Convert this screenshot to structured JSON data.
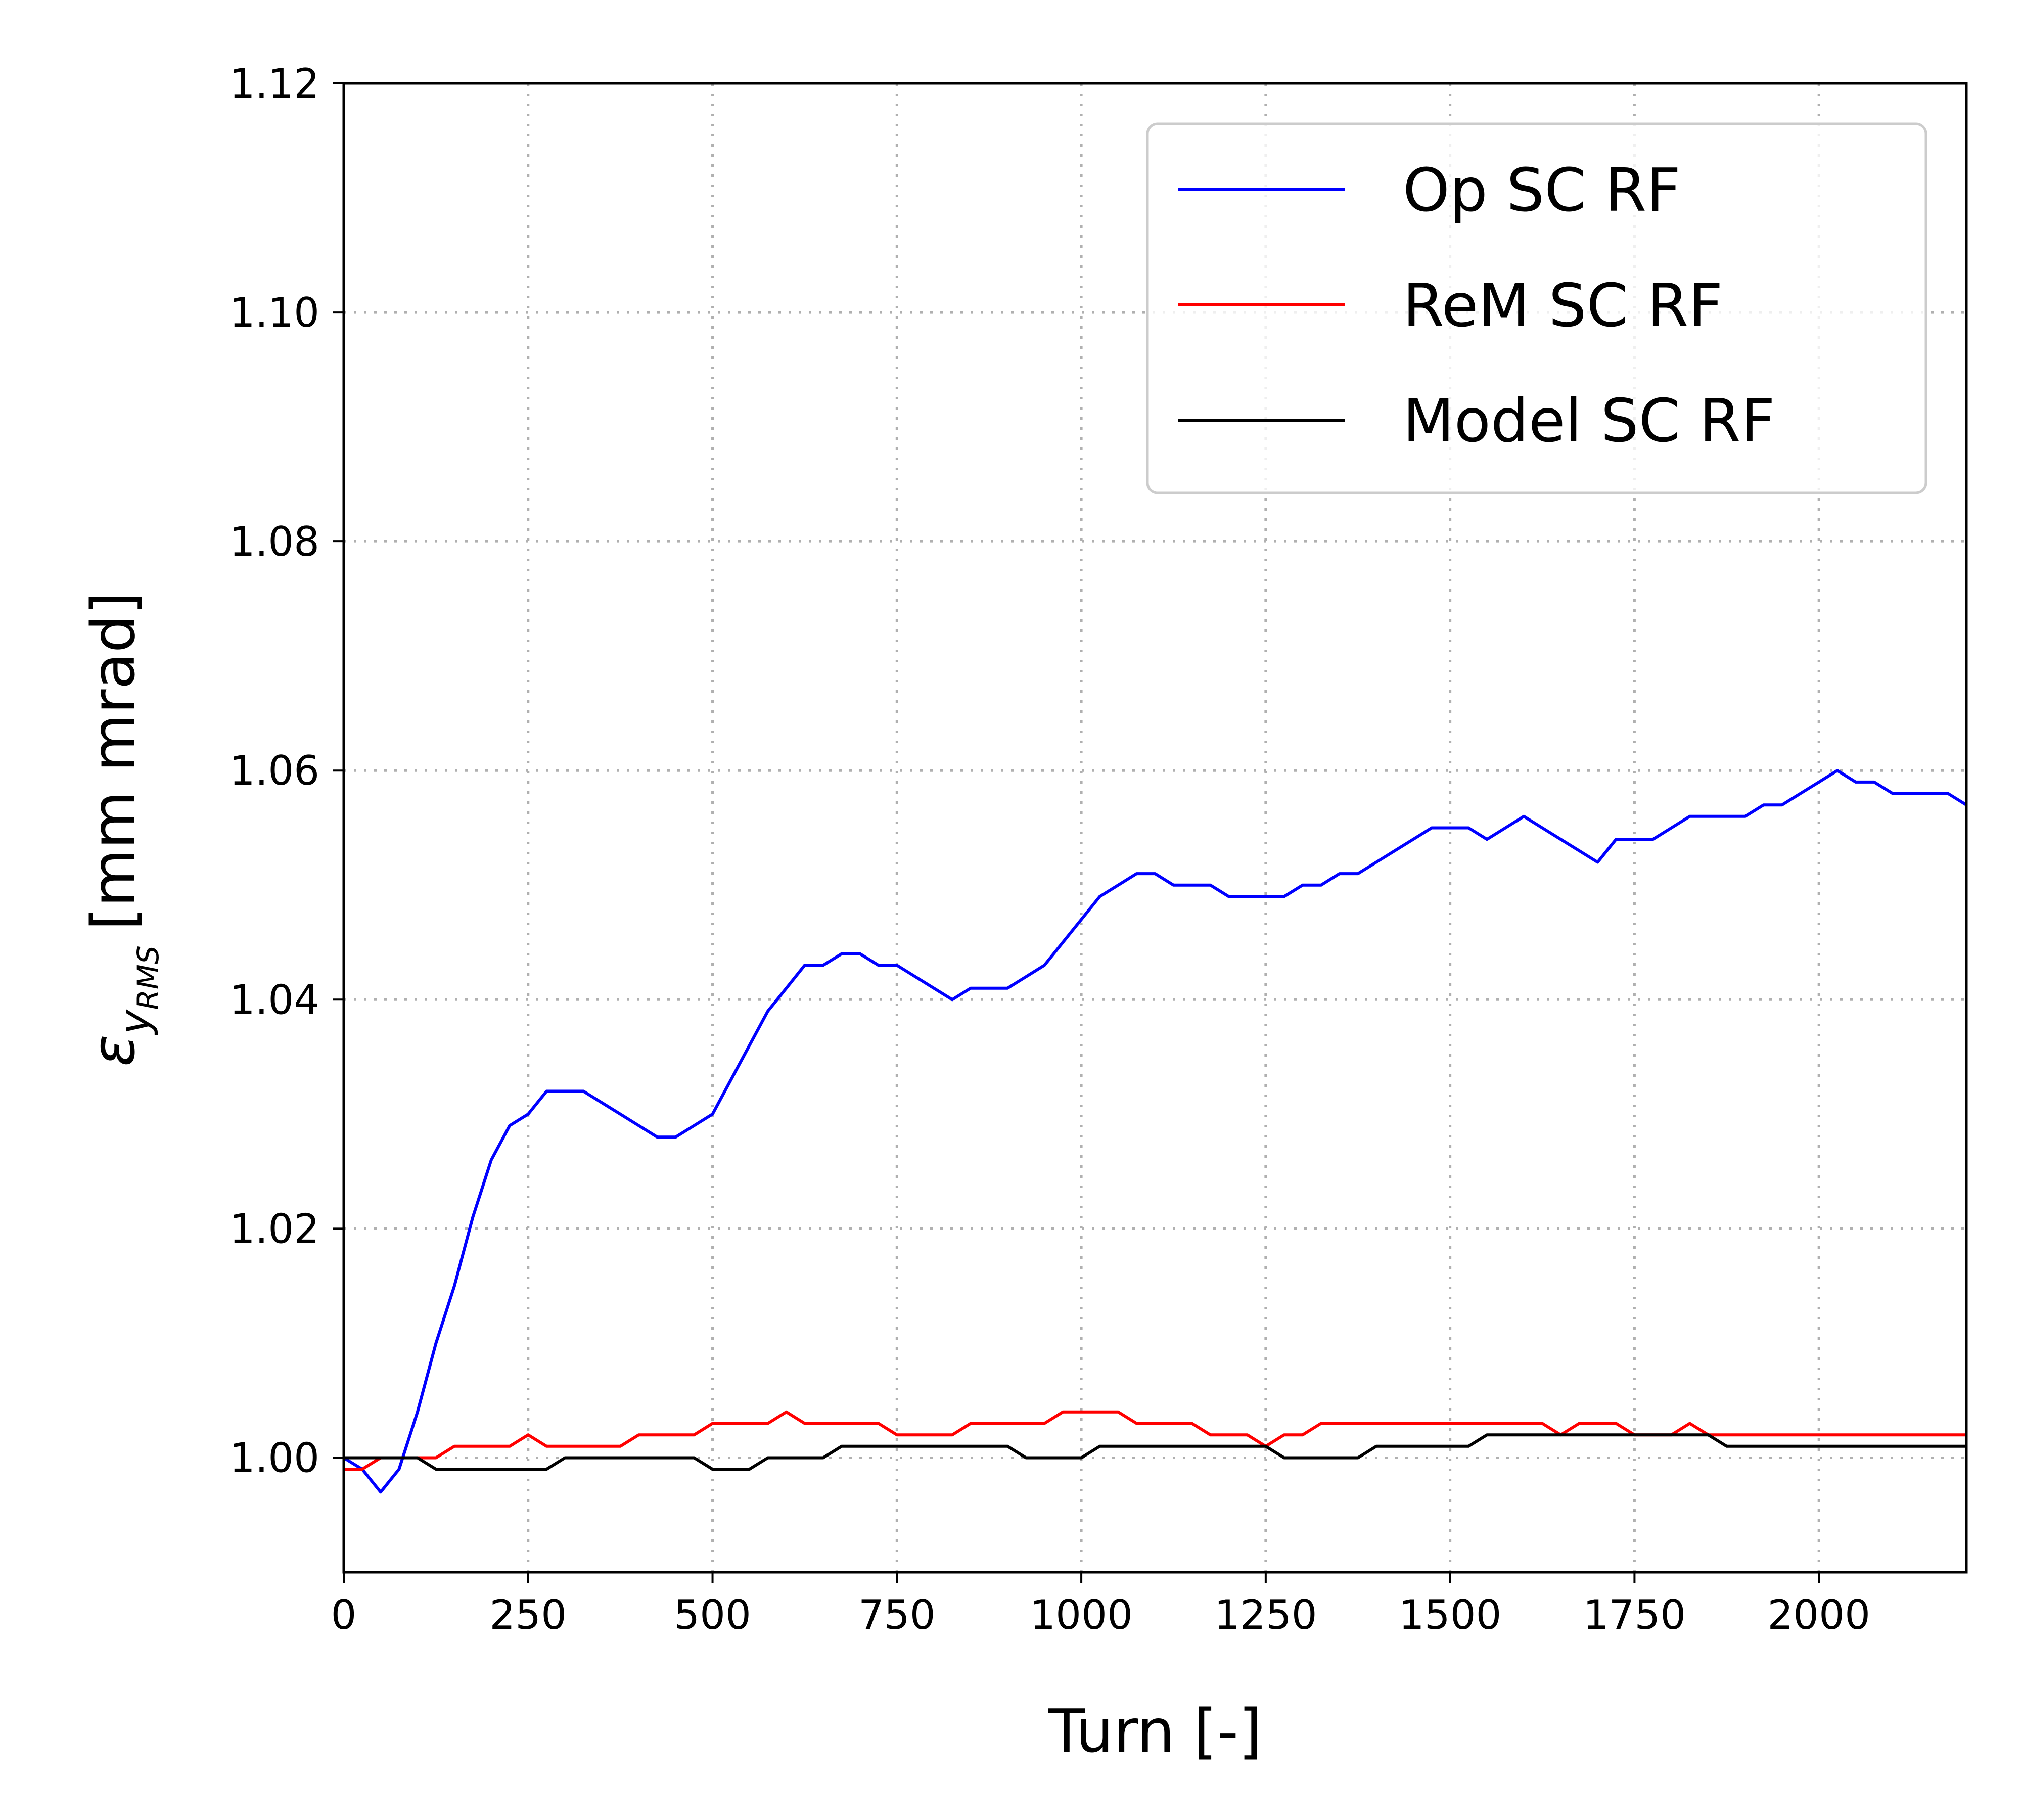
{
  "chart_data": {
    "type": "line",
    "title": "",
    "xlabel": "Turn [-]",
    "ylabel": "[mm mrad]",
    "ylabel_symbol": "ε",
    "ylabel_subscript": "y",
    "ylabel_subsubscript": "RMS",
    "xlim": [
      0,
      2200
    ],
    "ylim": [
      0.99,
      1.12
    ],
    "xticks": [
      0,
      250,
      500,
      750,
      1000,
      1250,
      1500,
      1750,
      2000
    ],
    "xtick_labels": [
      "0",
      "250",
      "500",
      "750",
      "1000",
      "1250",
      "1500",
      "1750",
      "2000"
    ],
    "yticks": [
      1.0,
      1.02,
      1.04,
      1.06,
      1.08,
      1.1,
      1.12
    ],
    "ytick_labels": [
      "1.00",
      "1.02",
      "1.04",
      "1.06",
      "1.08",
      "1.10",
      "1.12"
    ],
    "grid": true,
    "legend_position": "top-right",
    "x": [
      0,
      25,
      50,
      75,
      100,
      125,
      150,
      175,
      200,
      225,
      250,
      275,
      300,
      325,
      350,
      375,
      400,
      425,
      450,
      475,
      500,
      525,
      550,
      575,
      600,
      625,
      650,
      675,
      700,
      725,
      750,
      775,
      800,
      825,
      850,
      875,
      900,
      925,
      950,
      975,
      1000,
      1025,
      1050,
      1075,
      1100,
      1125,
      1150,
      1175,
      1200,
      1225,
      1250,
      1275,
      1300,
      1325,
      1350,
      1375,
      1400,
      1425,
      1450,
      1475,
      1500,
      1525,
      1550,
      1575,
      1600,
      1625,
      1650,
      1675,
      1700,
      1725,
      1750,
      1775,
      1800,
      1825,
      1850,
      1875,
      1900,
      1925,
      1950,
      1975,
      2000,
      2025,
      2050,
      2075,
      2100,
      2125,
      2150,
      2175,
      2200
    ],
    "series": [
      {
        "name": "Op SC RF",
        "color": "#0000ff",
        "values": [
          1.0,
          0.999,
          0.997,
          0.999,
          1.004,
          1.01,
          1.015,
          1.021,
          1.026,
          1.029,
          1.03,
          1.032,
          1.032,
          1.032,
          1.031,
          1.03,
          1.029,
          1.028,
          1.028,
          1.029,
          1.03,
          1.033,
          1.036,
          1.039,
          1.041,
          1.043,
          1.043,
          1.044,
          1.044,
          1.043,
          1.043,
          1.042,
          1.041,
          1.04,
          1.041,
          1.041,
          1.041,
          1.042,
          1.043,
          1.045,
          1.047,
          1.049,
          1.05,
          1.051,
          1.051,
          1.05,
          1.05,
          1.05,
          1.049,
          1.049,
          1.049,
          1.049,
          1.05,
          1.05,
          1.051,
          1.051,
          1.052,
          1.053,
          1.054,
          1.055,
          1.055,
          1.055,
          1.054,
          1.055,
          1.056,
          1.055,
          1.054,
          1.053,
          1.052,
          1.054,
          1.054,
          1.054,
          1.055,
          1.056,
          1.056,
          1.056,
          1.056,
          1.057,
          1.057,
          1.058,
          1.059,
          1.06,
          1.059,
          1.059,
          1.058,
          1.058,
          1.058,
          1.058,
          1.057
        ]
      },
      {
        "name": "ReM SC RF",
        "color": "#ff0000",
        "values": [
          0.999,
          0.999,
          1.0,
          1.0,
          1.0,
          1.0,
          1.001,
          1.001,
          1.001,
          1.001,
          1.002,
          1.001,
          1.001,
          1.001,
          1.001,
          1.001,
          1.002,
          1.002,
          1.002,
          1.002,
          1.003,
          1.003,
          1.003,
          1.003,
          1.004,
          1.003,
          1.003,
          1.003,
          1.003,
          1.003,
          1.002,
          1.002,
          1.002,
          1.002,
          1.003,
          1.003,
          1.003,
          1.003,
          1.003,
          1.004,
          1.004,
          1.004,
          1.004,
          1.003,
          1.003,
          1.003,
          1.003,
          1.002,
          1.002,
          1.002,
          1.001,
          1.002,
          1.002,
          1.003,
          1.003,
          1.003,
          1.003,
          1.003,
          1.003,
          1.003,
          1.003,
          1.003,
          1.003,
          1.003,
          1.003,
          1.003,
          1.002,
          1.003,
          1.003,
          1.003,
          1.002,
          1.002,
          1.002,
          1.003,
          1.002,
          1.002,
          1.002,
          1.002,
          1.002,
          1.002,
          1.002,
          1.002,
          1.002,
          1.002,
          1.002,
          1.002,
          1.002,
          1.002,
          1.002
        ]
      },
      {
        "name": "Model SC RF",
        "color": "#000000",
        "values": [
          1.0,
          1.0,
          1.0,
          1.0,
          1.0,
          0.999,
          0.999,
          0.999,
          0.999,
          0.999,
          0.999,
          0.999,
          1.0,
          1.0,
          1.0,
          1.0,
          1.0,
          1.0,
          1.0,
          1.0,
          0.999,
          0.999,
          0.999,
          1.0,
          1.0,
          1.0,
          1.0,
          1.001,
          1.001,
          1.001,
          1.001,
          1.001,
          1.001,
          1.001,
          1.001,
          1.001,
          1.001,
          1.0,
          1.0,
          1.0,
          1.0,
          1.001,
          1.001,
          1.001,
          1.001,
          1.001,
          1.001,
          1.001,
          1.001,
          1.001,
          1.001,
          1.0,
          1.0,
          1.0,
          1.0,
          1.0,
          1.001,
          1.001,
          1.001,
          1.001,
          1.001,
          1.001,
          1.002,
          1.002,
          1.002,
          1.002,
          1.002,
          1.002,
          1.002,
          1.002,
          1.002,
          1.002,
          1.002,
          1.002,
          1.002,
          1.001,
          1.001,
          1.001,
          1.001,
          1.001,
          1.001,
          1.001,
          1.001,
          1.001,
          1.001,
          1.001,
          1.001,
          1.001,
          1.001
        ]
      }
    ]
  }
}
